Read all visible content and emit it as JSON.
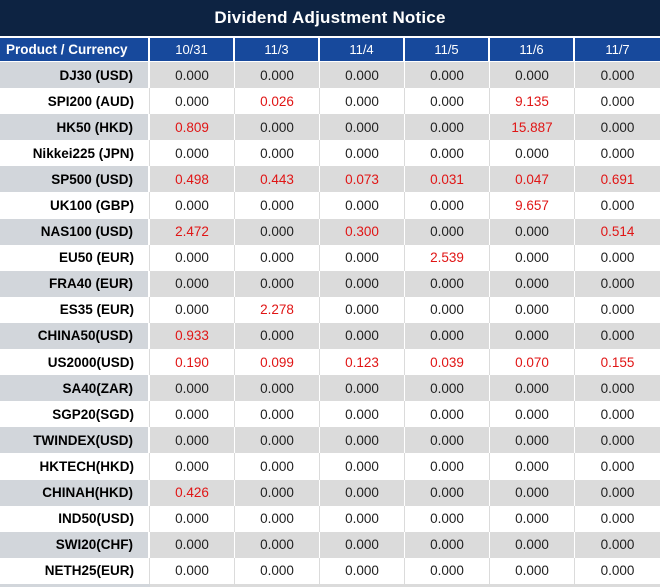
{
  "title": "Dividend Adjustment Notice",
  "colors": {
    "title_navy": "#0d2342",
    "header_blue": "#17499c",
    "row_gray": "#dbdbdb",
    "label_gray": "#d2d6db",
    "accent_red": "#e01515"
  },
  "table": {
    "header": [
      "Product / Currency",
      "10/31",
      "11/3",
      "11/4",
      "11/5",
      "11/6",
      "11/7"
    ],
    "rows": [
      {
        "label": "DJ30 (USD)",
        "values": [
          "0.000",
          "0.000",
          "0.000",
          "0.000",
          "0.000",
          "0.000"
        ],
        "red": [
          false,
          false,
          false,
          false,
          false,
          false
        ]
      },
      {
        "label": "SPI200 (AUD)",
        "values": [
          "0.000",
          "0.026",
          "0.000",
          "0.000",
          "9.135",
          "0.000"
        ],
        "red": [
          false,
          true,
          false,
          false,
          true,
          false
        ]
      },
      {
        "label": "HK50 (HKD)",
        "values": [
          "0.809",
          "0.000",
          "0.000",
          "0.000",
          "15.887",
          "0.000"
        ],
        "red": [
          true,
          false,
          false,
          false,
          true,
          false
        ]
      },
      {
        "label": "Nikkei225 (JPN)",
        "values": [
          "0.000",
          "0.000",
          "0.000",
          "0.000",
          "0.000",
          "0.000"
        ],
        "red": [
          false,
          false,
          false,
          false,
          false,
          false
        ]
      },
      {
        "label": "SP500 (USD)",
        "values": [
          "0.498",
          "0.443",
          "0.073",
          "0.031",
          "0.047",
          "0.691"
        ],
        "red": [
          true,
          true,
          true,
          true,
          true,
          true
        ]
      },
      {
        "label": "UK100 (GBP)",
        "values": [
          "0.000",
          "0.000",
          "0.000",
          "0.000",
          "9.657",
          "0.000"
        ],
        "red": [
          false,
          false,
          false,
          false,
          true,
          false
        ]
      },
      {
        "label": "NAS100 (USD)",
        "values": [
          "2.472",
          "0.000",
          "0.300",
          "0.000",
          "0.000",
          "0.514"
        ],
        "red": [
          true,
          false,
          true,
          false,
          false,
          true
        ]
      },
      {
        "label": "EU50 (EUR)",
        "values": [
          "0.000",
          "0.000",
          "0.000",
          "2.539",
          "0.000",
          "0.000"
        ],
        "red": [
          false,
          false,
          false,
          true,
          false,
          false
        ]
      },
      {
        "label": "FRA40 (EUR)",
        "values": [
          "0.000",
          "0.000",
          "0.000",
          "0.000",
          "0.000",
          "0.000"
        ],
        "red": [
          false,
          false,
          false,
          false,
          false,
          false
        ]
      },
      {
        "label": "ES35 (EUR)",
        "values": [
          "0.000",
          "2.278",
          "0.000",
          "0.000",
          "0.000",
          "0.000"
        ],
        "red": [
          false,
          true,
          false,
          false,
          false,
          false
        ]
      },
      {
        "label": "CHINA50(USD)",
        "values": [
          "0.933",
          "0.000",
          "0.000",
          "0.000",
          "0.000",
          "0.000"
        ],
        "red": [
          true,
          false,
          false,
          false,
          false,
          false
        ]
      },
      {
        "label": "US2000(USD)",
        "values": [
          "0.190",
          "0.099",
          "0.123",
          "0.039",
          "0.070",
          "0.155"
        ],
        "red": [
          true,
          true,
          true,
          true,
          true,
          true
        ]
      },
      {
        "label": "SA40(ZAR)",
        "values": [
          "0.000",
          "0.000",
          "0.000",
          "0.000",
          "0.000",
          "0.000"
        ],
        "red": [
          false,
          false,
          false,
          false,
          false,
          false
        ]
      },
      {
        "label": "SGP20(SGD)",
        "values": [
          "0.000",
          "0.000",
          "0.000",
          "0.000",
          "0.000",
          "0.000"
        ],
        "red": [
          false,
          false,
          false,
          false,
          false,
          false
        ]
      },
      {
        "label": "TWINDEX(USD)",
        "values": [
          "0.000",
          "0.000",
          "0.000",
          "0.000",
          "0.000",
          "0.000"
        ],
        "red": [
          false,
          false,
          false,
          false,
          false,
          false
        ]
      },
      {
        "label": "HKTECH(HKD)",
        "values": [
          "0.000",
          "0.000",
          "0.000",
          "0.000",
          "0.000",
          "0.000"
        ],
        "red": [
          false,
          false,
          false,
          false,
          false,
          false
        ]
      },
      {
        "label": "CHINAH(HKD)",
        "values": [
          "0.426",
          "0.000",
          "0.000",
          "0.000",
          "0.000",
          "0.000"
        ],
        "red": [
          true,
          false,
          false,
          false,
          false,
          false
        ]
      },
      {
        "label": "IND50(USD)",
        "values": [
          "0.000",
          "0.000",
          "0.000",
          "0.000",
          "0.000",
          "0.000"
        ],
        "red": [
          false,
          false,
          false,
          false,
          false,
          false
        ]
      },
      {
        "label": "SWI20(CHF)",
        "values": [
          "0.000",
          "0.000",
          "0.000",
          "0.000",
          "0.000",
          "0.000"
        ],
        "red": [
          false,
          false,
          false,
          false,
          false,
          false
        ]
      },
      {
        "label": "NETH25(EUR)",
        "values": [
          "0.000",
          "0.000",
          "0.000",
          "0.000",
          "0.000",
          "0.000"
        ],
        "red": [
          false,
          false,
          false,
          false,
          false,
          false
        ]
      }
    ]
  }
}
